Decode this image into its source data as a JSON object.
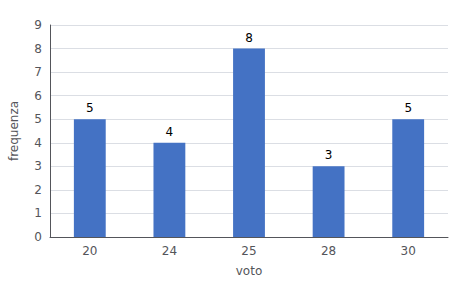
{
  "chart_data": {
    "type": "bar",
    "categories": [
      "20",
      "24",
      "25",
      "28",
      "30"
    ],
    "values": [
      5,
      4,
      8,
      3,
      5
    ],
    "color": "#4472c4",
    "xlabel": "voto",
    "ylabel": "frequenza",
    "ylim": [
      0,
      9
    ],
    "yticks": [
      0,
      1,
      2,
      3,
      4,
      5,
      6,
      7,
      8,
      9
    ],
    "grid": true,
    "data_labels": true
  }
}
